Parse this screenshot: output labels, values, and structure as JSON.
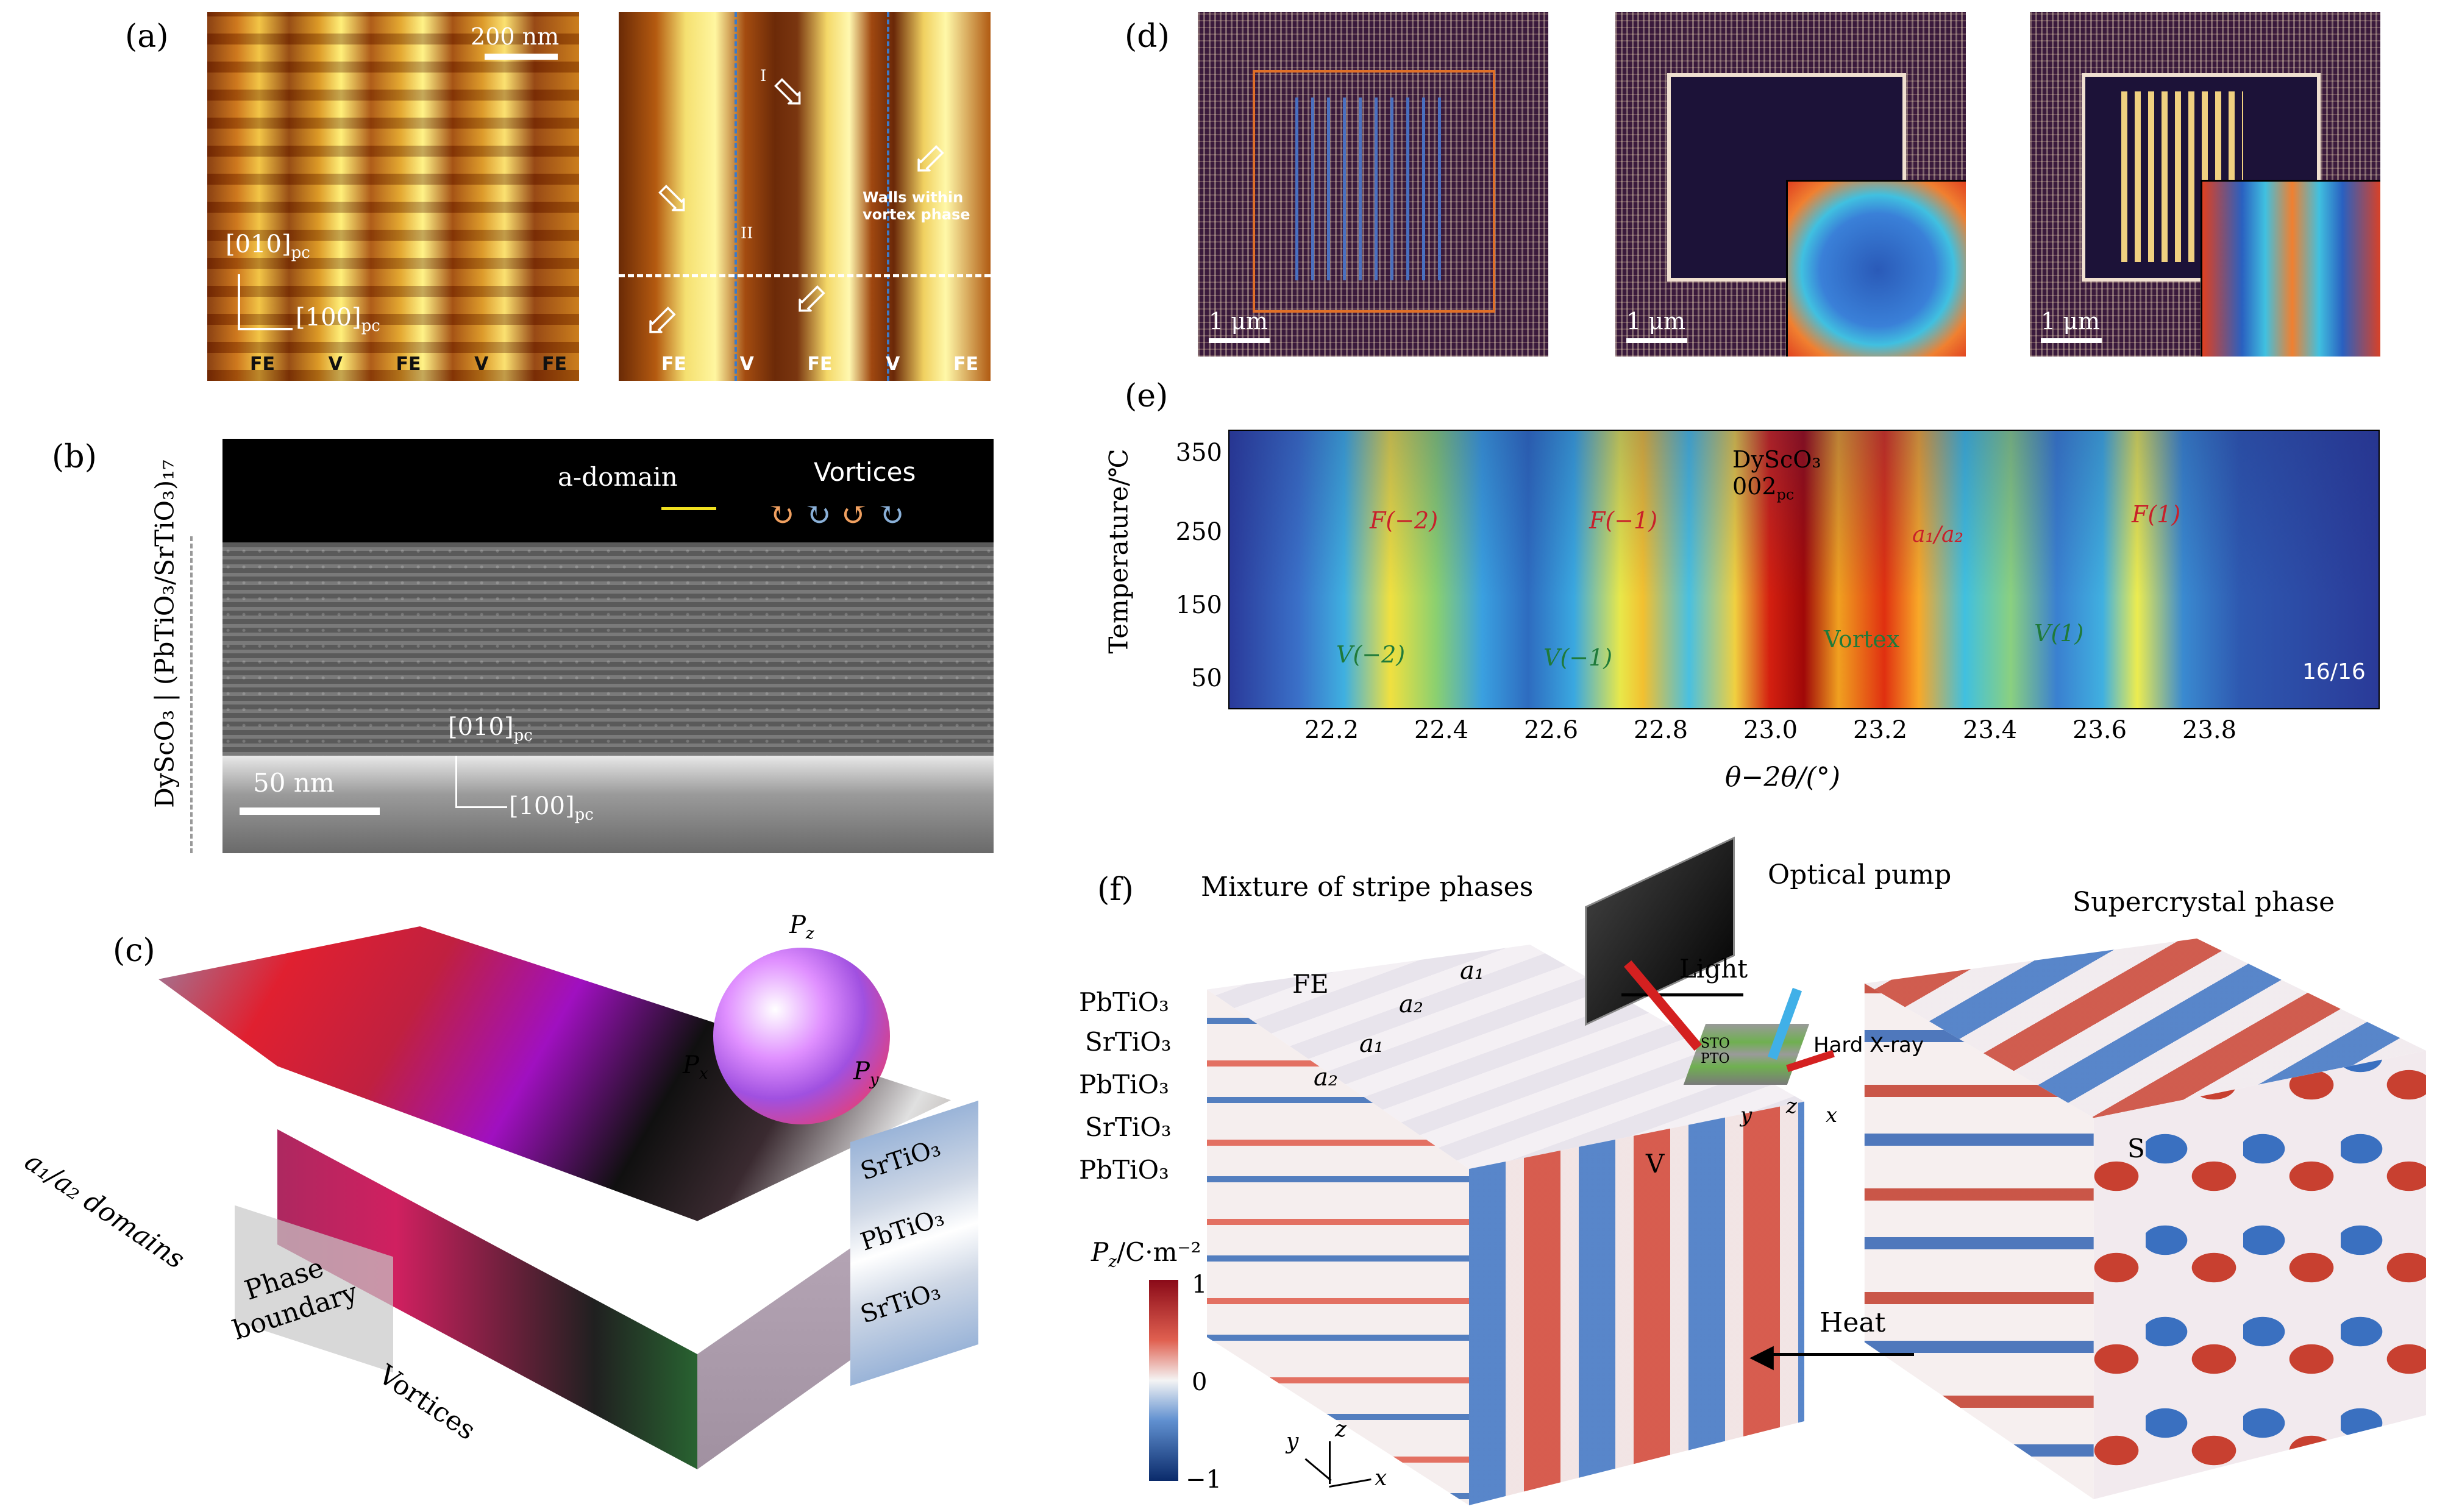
{
  "panels": {
    "a": {
      "label": "(a)",
      "scale": "200 nm",
      "axis_y": "[010]",
      "axis_x": "[100]",
      "axis_sub": "pc",
      "phase_left": [
        "FE",
        "V",
        "FE",
        "V",
        "FE"
      ],
      "phase_right": [
        "FE",
        "V",
        "FE",
        "V",
        "FE"
      ],
      "roman": [
        "I",
        "II"
      ],
      "walls_note": "Walls within vortex phase"
    },
    "b": {
      "label": "(b)",
      "side_label": "DyScO₃ | (PbTiO₃/SrTiO₃)₁₇",
      "a_domain": "a-domain",
      "vortices": "Vortices",
      "scale": "50 nm",
      "axis_y": "[010]",
      "axis_x": "[100]",
      "axis_sub": "pc"
    },
    "c": {
      "label": "(c)",
      "pz": "P",
      "pz_sub": "z",
      "px": "P",
      "px_sub": "x",
      "py": "P",
      "py_sub": "y",
      "domains": "a₁/a₂ domains",
      "phase_boundary": "Phase boundary",
      "vortices": "Vortices",
      "layers": [
        "SrTiO₃",
        "PbTiO₃",
        "SrTiO₃"
      ]
    },
    "d": {
      "label": "(d)",
      "scales": [
        "1 μm",
        "1 μm",
        "1 μm"
      ]
    },
    "e": {
      "label": "(e)",
      "ylabel": "Temperature/℃",
      "xlabel": "θ−2θ/(°)",
      "yticks": [
        "350",
        "250",
        "150",
        "50"
      ],
      "xticks": [
        "22.2",
        "22.4",
        "22.6",
        "22.8",
        "23.0",
        "23.2",
        "23.4",
        "23.6",
        "23.8"
      ],
      "substrate": "DyScO₃",
      "substrate_peak": "002",
      "substrate_sub": "pc",
      "peaks_F": [
        "F(−2)",
        "F(−1)",
        "F(1)"
      ],
      "peaks_V": [
        "V(−2)",
        "V(−1)",
        "V(1)"
      ],
      "vortex": "Vortex",
      "a1a2": "a₁/a₂",
      "fraction": "16/16"
    },
    "f": {
      "label": "(f)",
      "left_title": "Mixture of stripe phases",
      "right_title": "Supercrystal phase",
      "optical_pump": "Optical pump",
      "light": "Light",
      "hard_xray": "Hard X-ray",
      "heat": "Heat",
      "layers": [
        "PbTiO₃",
        "SrTiO₃",
        "PbTiO₃",
        "SrTiO₃",
        "PbTiO₃"
      ],
      "fe": "FE",
      "a1": "a₁",
      "a2": "a₂",
      "v": "V",
      "s": "S",
      "sto": "STO",
      "pto": "PTO",
      "cbar_label": "P",
      "cbar_sub": "z",
      "cbar_unit": "/C·m⁻²",
      "cbar_ticks": [
        "1",
        "0",
        "−1"
      ],
      "axes": [
        "x",
        "y",
        "z"
      ]
    }
  }
}
